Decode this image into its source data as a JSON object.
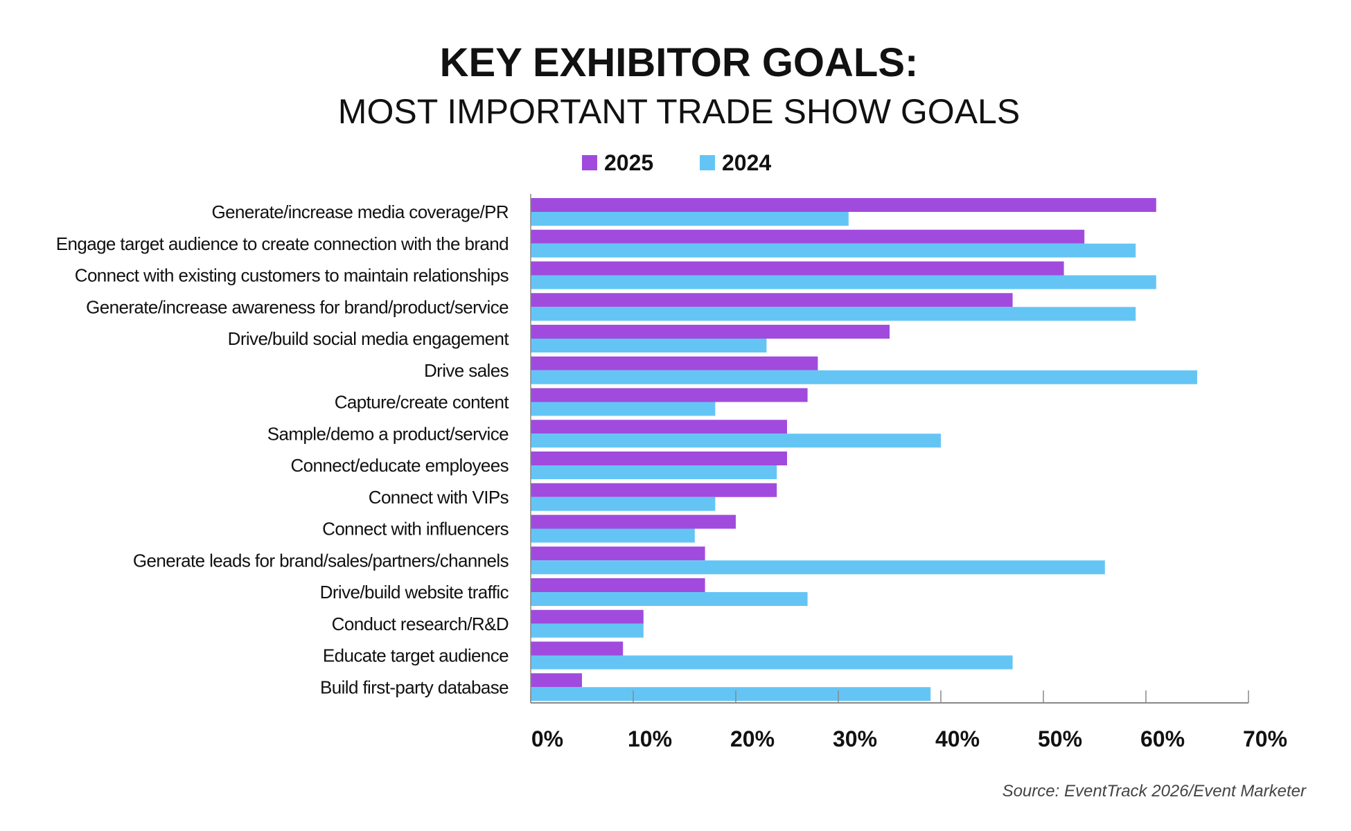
{
  "chart_data": {
    "type": "bar",
    "orientation": "horizontal",
    "title": "KEY EXHIBITOR GOALS:",
    "subtitle": "MOST IMPORTANT TRADE SHOW GOALS",
    "categories": [
      "Generate/increase media coverage/PR",
      "Engage target audience to create connection with the brand",
      "Connect with existing customers to maintain relationships",
      "Generate/increase awareness for brand/product/service",
      "Drive/build social media engagement",
      "Drive sales",
      "Capture/create content",
      "Sample/demo a product/service",
      "Connect/educate employees",
      "Connect with VIPs",
      "Connect with influencers",
      "Generate leads for brand/sales/partners/channels",
      "Drive/build website traffic",
      "Conduct research/R&D",
      "Educate target audience",
      "Build first-party database"
    ],
    "series": [
      {
        "name": "2025",
        "color": "#a04bdd",
        "values": [
          61,
          54,
          52,
          47,
          35,
          28,
          27,
          25,
          25,
          24,
          20,
          17,
          17,
          11,
          9,
          5
        ]
      },
      {
        "name": "2024",
        "color": "#64c5f5",
        "values": [
          31,
          59,
          61,
          59,
          23,
          65,
          18,
          40,
          24,
          18,
          16,
          56,
          27,
          11,
          47,
          39
        ]
      }
    ],
    "xlim": [
      0,
      70
    ],
    "xticks": [
      0,
      10,
      20,
      30,
      40,
      50,
      60,
      70
    ],
    "xtick_labels": [
      "0%",
      "10%",
      "20%",
      "30%",
      "40%",
      "50%",
      "60%",
      "70%"
    ],
    "unit": "%",
    "legend_position": "top",
    "grid": false,
    "source": "Source: EventTrack 2026/Event Marketer"
  }
}
